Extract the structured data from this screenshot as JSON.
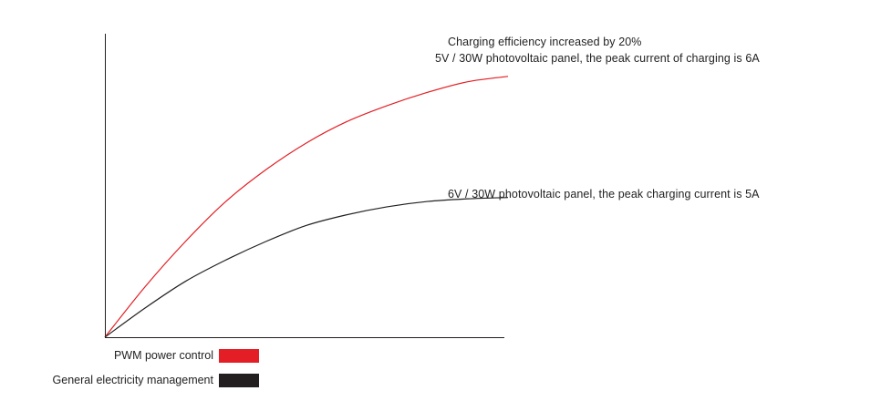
{
  "chart_data": {
    "type": "line",
    "title": "",
    "xlabel": "",
    "ylabel": "",
    "grid": false,
    "legend_position": "bottom-left",
    "xlim": [
      0,
      1
    ],
    "ylim": [
      0,
      1
    ],
    "series": [
      {
        "name": "PWM power control",
        "color": "#e31e24",
        "x": [
          0,
          0.1,
          0.2,
          0.3,
          0.4,
          0.5,
          0.6,
          0.7,
          0.8,
          0.9,
          1.0
        ],
        "y": [
          0,
          0.19,
          0.36,
          0.51,
          0.63,
          0.73,
          0.81,
          0.87,
          0.92,
          0.96,
          0.98
        ]
      },
      {
        "name": "General electricity management",
        "color": "#231f20",
        "x": [
          0,
          0.1,
          0.2,
          0.3,
          0.4,
          0.5,
          0.6,
          0.7,
          0.8,
          0.9,
          1.0
        ],
        "y": [
          0,
          0.11,
          0.21,
          0.29,
          0.36,
          0.42,
          0.46,
          0.49,
          0.51,
          0.52,
          0.525
        ]
      }
    ],
    "annotations": [
      "Charging efficiency increased by 20%",
      "5V / 30W photovoltaic panel, the peak current of charging is 6A",
      "6V / 30W photovoltaic panel, the peak charging current is 5A"
    ]
  }
}
